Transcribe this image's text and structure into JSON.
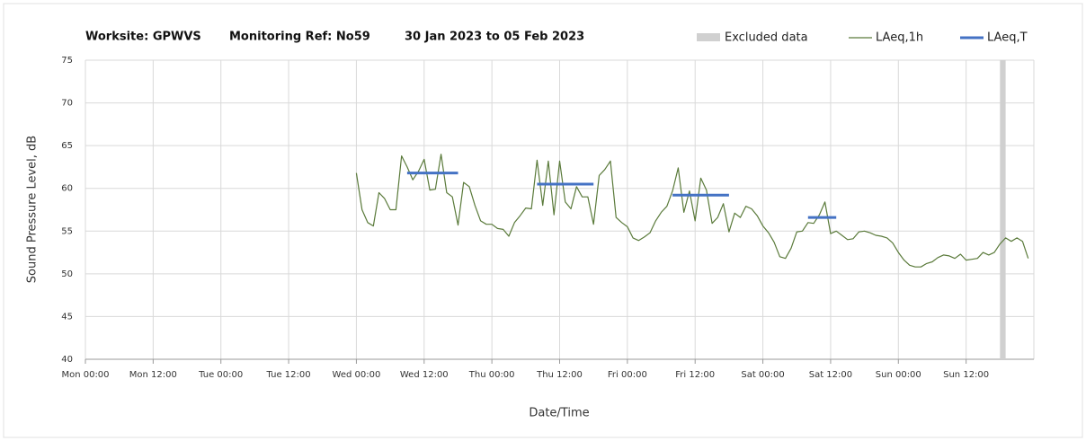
{
  "chart_data": {
    "type": "line",
    "title": [
      "Worksite: GPWVS",
      "Monitoring Ref: No59",
      "30 Jan 2023 to 05 Feb 2023"
    ],
    "xlabel": "Date/Time",
    "ylabel": "Sound Pressure Level, dB",
    "xlim": [
      0,
      168
    ],
    "ylim": [
      40,
      75
    ],
    "yticks": [
      40,
      45,
      50,
      55,
      60,
      65,
      70,
      75
    ],
    "xticks": [
      {
        "value": 0,
        "label": "Mon 00:00"
      },
      {
        "value": 12,
        "label": "Mon 12:00"
      },
      {
        "value": 24,
        "label": "Tue 00:00"
      },
      {
        "value": 36,
        "label": "Tue 12:00"
      },
      {
        "value": 48,
        "label": "Wed 00:00"
      },
      {
        "value": 60,
        "label": "Wed 12:00"
      },
      {
        "value": 72,
        "label": "Thu 00:00"
      },
      {
        "value": 84,
        "label": "Thu 12:00"
      },
      {
        "value": 96,
        "label": "Fri 00:00"
      },
      {
        "value": 108,
        "label": "Fri 12:00"
      },
      {
        "value": 120,
        "label": "Sat 00:00"
      },
      {
        "value": 132,
        "label": "Sat 12:00"
      },
      {
        "value": 144,
        "label": "Sun 00:00"
      },
      {
        "value": 156,
        "label": "Sun 12:00"
      }
    ],
    "grid": true,
    "excluded": {
      "name": "Excluded data",
      "color": "#d0d0d0",
      "x": [
        162,
        163
      ]
    },
    "series": [
      {
        "name": "LAeq,1h",
        "color": "#5a7a3a",
        "x": [
          48,
          49,
          50,
          51,
          52,
          53,
          54,
          55,
          56,
          57,
          58,
          59,
          60,
          61,
          62,
          63,
          64,
          65,
          66,
          67,
          68,
          69,
          70,
          71,
          72,
          73,
          74,
          75,
          76,
          77,
          78,
          79,
          80,
          81,
          82,
          83,
          84,
          85,
          86,
          87,
          88,
          89,
          90,
          91,
          92,
          93,
          94,
          95,
          96,
          97,
          98,
          99,
          100,
          101,
          102,
          103,
          104,
          105,
          106,
          107,
          108,
          109,
          110,
          111,
          112,
          113,
          114,
          115,
          116,
          117,
          118,
          119,
          120,
          121,
          122,
          123,
          124,
          125,
          126,
          127,
          128,
          129,
          130,
          131,
          132,
          133,
          134,
          135,
          136,
          137,
          138,
          139,
          140,
          141,
          142,
          143,
          144,
          145,
          146,
          147,
          148,
          149,
          150,
          151,
          152,
          153,
          154,
          155,
          156,
          157,
          158,
          159,
          160,
          161,
          162,
          163,
          164,
          165,
          166,
          167
        ],
        "values": [
          61.8,
          57.5,
          56,
          55.6,
          59.5,
          58.8,
          57.5,
          57.5,
          63.8,
          62.5,
          61,
          62,
          63.4,
          59.8,
          59.9,
          64,
          59.5,
          59,
          55.7,
          60.7,
          60.2,
          58,
          56.2,
          55.8,
          55.8,
          55.3,
          55.2,
          54.4,
          56,
          56.8,
          57.7,
          57.6,
          63.3,
          58,
          63.2,
          56.9,
          63.2,
          58.4,
          57.6,
          60.2,
          59,
          59,
          55.8,
          61.5,
          62.2,
          63.2,
          56.6,
          56,
          55.5,
          54.2,
          53.9,
          54.3,
          54.8,
          56.2,
          57.2,
          57.9,
          59.7,
          62.4,
          57.2,
          59.7,
          56.2,
          61.2,
          59.8,
          55.9,
          56.6,
          58.2,
          54.9,
          57.1,
          56.6,
          57.9,
          57.6,
          56.8,
          55.6,
          54.8,
          53.7,
          52,
          51.8,
          53,
          54.9,
          55,
          56,
          55.9,
          56.9,
          58.4,
          54.7,
          55,
          54.5,
          54,
          54.1,
          54.9,
          55,
          54.8,
          54.5,
          54.4,
          54.2,
          53.6,
          52.5,
          51.6,
          51,
          50.8,
          50.8,
          51.2,
          51.4,
          51.9,
          52.2,
          52.1,
          51.8,
          52.3,
          51.6,
          51.7,
          51.8,
          52.5,
          52.2,
          52.5,
          53.5,
          54.2,
          53.8,
          54.2,
          53.8,
          51.8
        ]
      },
      {
        "name": "LAeq,T",
        "color": "#4472c4",
        "x": [
          57,
          66,
          66,
          80,
          90,
          90,
          104,
          114,
          114,
          128,
          133
        ],
        "values": [
          61.8,
          61.8,
          null,
          60.5,
          60.5,
          null,
          59.2,
          59.2,
          null,
          56.6,
          56.6
        ]
      }
    ]
  }
}
